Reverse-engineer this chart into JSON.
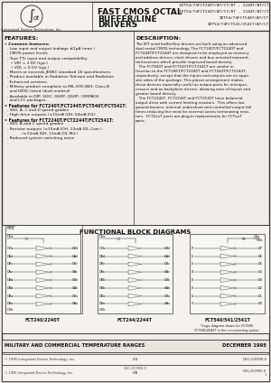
{
  "title_main": "FAST CMOS OCTAL\nBUFFER/LINE\nDRIVERS",
  "part_numbers": "IDT54/74FCT240T/AT/CT/DT - 2240T/AT/CT\nIDT54/74FCT244T/AT/CT/DT - 2244T/AT/CT\nIDT54/74FCT540T/AT/CT\nIDT54/74FCT541/2541T/AT/CT",
  "features_title": "FEATURES:",
  "description_title": "DESCRIPTION:",
  "functional_title": "FUNCTIONAL BLOCK DIAGRAMS",
  "bottom_left": "MILITARY AND COMMERCIAL TEMPERATURE RANGES",
  "bottom_right": "DECEMBER 1995",
  "bottom_line2_left": "© 1995 Integrated Device Technology, Inc.",
  "bottom_line2_center": "8.8",
  "bottom_line2_right": "DSG-200908-8\n1",
  "bg_color": "#f0ede8",
  "header_bg": "#e8e4de",
  "border_color": "#333333",
  "text_color": "#111111",
  "logo_company": "Integrated Device Technology, Inc.",
  "features_bullets": [
    "Common features:",
    "  - Low input and output leakage ≤1μA (max.)",
    "  - CMOS power levels",
    "  - True TTL input and output compatibility",
    "     • VIH = 2.0V (typ.)",
    "     • VOL = 0.5V (typ.)",
    "  - Meets or exceeds JEDEC standard 18 specifications",
    "  - Product available in Radiation Tolerant and Radiation",
    "    Enhanced versions",
    "  - Military product compliant to MIL-STD-883, Class B",
    "    and DESC listed (dual marked)",
    "  - Available in DIP, SOIC, SSOP, QSOP, CERPACK",
    "    and LCC packages",
    "Features for FCT240T/FCT244T/FCT540T/FCT541T:",
    "  - S60, A, C and D speed grades",
    "  - High drive outputs (±15mA IOH, 64mA IOL)",
    "Features for FCT2240T/FCT2244T/FCT2541T:",
    "  - S60, A and C speed grades",
    "  - Resistor outputs (±15mA IOH, 12mA IOL-Com.)",
    "              (±12mA IOH, 12mA IOL-Mil.)",
    "  - Reduced system switching noise"
  ],
  "desc_lines": [
    "The IDT octal buffer/line drivers are built using an advanced",
    "dual metal CMOS technology. The FCT240T/FCT2240T and",
    "FCT244T/FCT2244T are designed to be employed as memory",
    "and address drivers, clock drivers and bus-oriented transmit-",
    "ter/receivers which provide improved board density.",
    "   The FCT540T and FCT541T/FCT2541T are similar in",
    "function to the FCT246T/FCT2240T and FCT244T/FCT2244T,",
    "respectively, except that the inputs and outputs are on oppo-",
    "site sides of the package. This pinout arrangement makes",
    "these devices especially useful as output ports for micropro-",
    "cessors and as backplane drivers, allowing ease of layout and",
    "greater board density.",
    "   The FCT2240T, FCT2244T and FCT2541T have balanced",
    "output drive with current limiting resistors.  This offers low",
    "ground bounce, minimal undershoot and controlled output fall",
    "times-reducing the need for external series terminating resis-",
    "tors.  FCT2xxT parts are plug-in replacements for FCTxxT",
    "parts."
  ],
  "diagram_labels": {
    "left_title": "FCT240/2240T",
    "mid_title": "FCT244/2244T",
    "right_title": "FCT540/541/2541T",
    "right_note": "*Logic diagram shown for FCT540.\nFCT541/2541T is the non-inverting option."
  }
}
